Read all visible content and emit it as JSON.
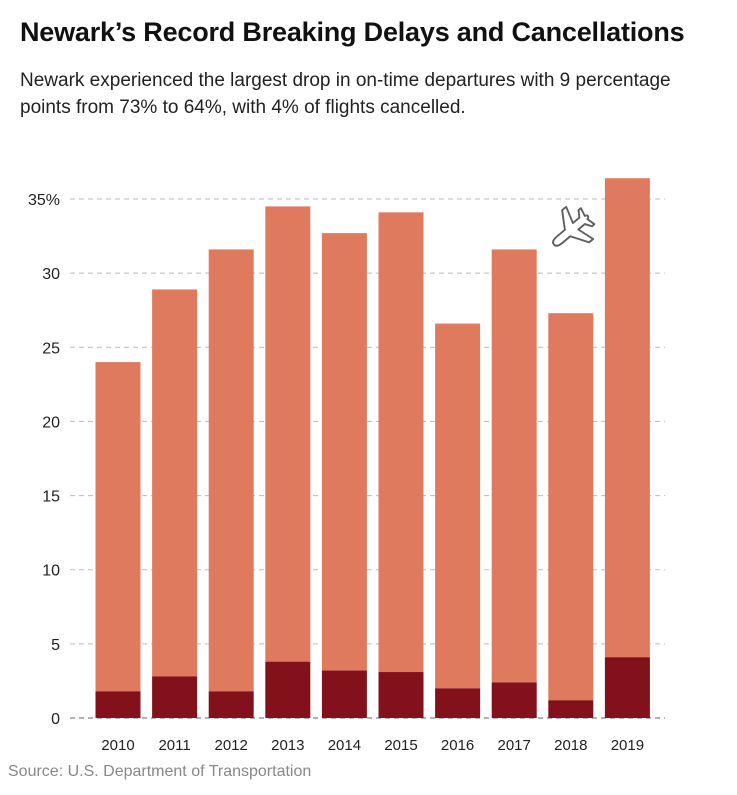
{
  "title": "Newark’s Record Breaking Delays and Cancellations",
  "subtitle": "Newark experienced the largest drop in on-time departures with 9 percentage points from 73% to 64%, with 4% of flights cancelled.",
  "source": "Source: U.S. Department of Transportation",
  "icon": "airplane-icon",
  "colors": {
    "delays": "#E07A5F",
    "cancellations": "#82111C",
    "grid": "#BBBBBB",
    "axis": "#999999"
  },
  "chart_data": {
    "type": "bar",
    "stacked": true,
    "categories": [
      "2010",
      "2011",
      "2012",
      "2013",
      "2014",
      "2015",
      "2016",
      "2017",
      "2018",
      "2019"
    ],
    "series": [
      {
        "values": [
          1.8,
          2.8,
          1.8,
          3.8,
          3.2,
          3.1,
          2.0,
          2.4,
          1.2,
          4.1
        ]
      },
      {
        "values": [
          22.2,
          26.1,
          29.8,
          30.7,
          29.5,
          31.0,
          24.6,
          29.2,
          26.1,
          32.3
        ]
      }
    ],
    "totals": [
      24.0,
      28.9,
      31.6,
      34.5,
      32.7,
      34.1,
      26.6,
      31.6,
      27.3,
      36.4
    ],
    "ylim": [
      0,
      35
    ],
    "yticks": [
      0,
      5,
      10,
      15,
      20,
      25,
      30,
      35
    ],
    "ytick_labels": [
      "0",
      "5",
      "10",
      "15",
      "20",
      "25",
      "30",
      "35%"
    ],
    "grid": true,
    "legend": "none"
  }
}
